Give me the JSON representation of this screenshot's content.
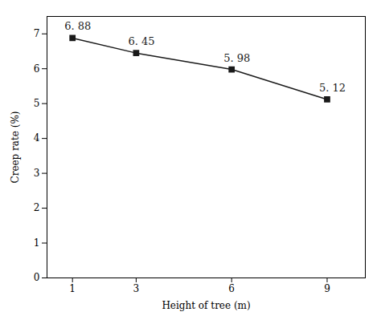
{
  "chart_data": {
    "type": "line",
    "x": [
      1,
      3,
      6,
      9
    ],
    "values": [
      6.88,
      6.45,
      5.98,
      5.12
    ],
    "value_labels": [
      "6. 88",
      "6. 45",
      "5. 98",
      "5. 12"
    ],
    "data_labels": true,
    "xlabel": "Height of tree (m)",
    "ylabel": "Creep rate (%)",
    "xlim": [
      0.2,
      10.2
    ],
    "ylim": [
      0,
      7.5
    ],
    "xticks": [
      1,
      3,
      6,
      9
    ],
    "yticks": [
      0,
      1,
      2,
      3,
      4,
      5,
      6,
      7
    ],
    "color": "#1a1a1a",
    "marker": "square",
    "grid": false
  }
}
